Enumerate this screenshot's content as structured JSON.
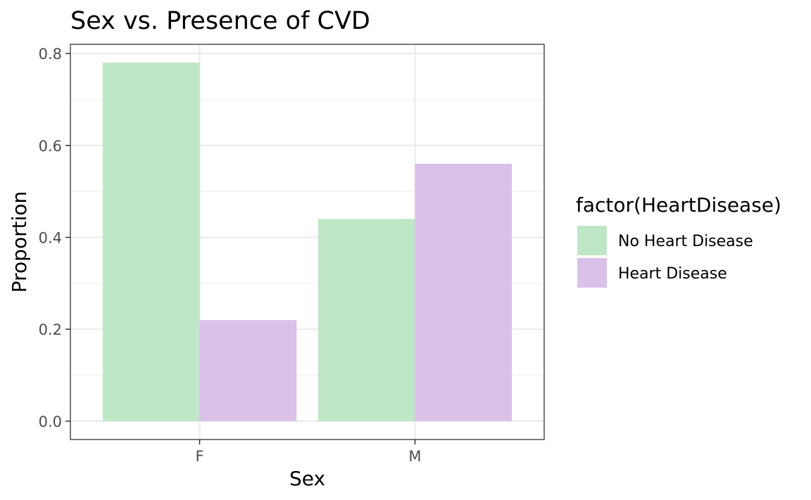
{
  "chart_data": {
    "type": "bar",
    "title": "Sex vs. Presence of CVD",
    "xlabel": "Sex",
    "ylabel": "Proportion",
    "categories": [
      "F",
      "M"
    ],
    "series": [
      {
        "name": "No Heart Disease",
        "values": [
          0.78,
          0.44
        ],
        "color": "#c0e6c8"
      },
      {
        "name": "Heart Disease",
        "values": [
          0.22,
          0.56
        ],
        "color": "#d9c1ea"
      }
    ],
    "ylim": [
      -0.04,
      0.82
    ],
    "yticks": [
      "0.0",
      "0.2",
      "0.4",
      "0.6",
      "0.8"
    ],
    "grid": true,
    "legend": {
      "title": "factor(HeartDisease)",
      "placement": "right"
    }
  }
}
